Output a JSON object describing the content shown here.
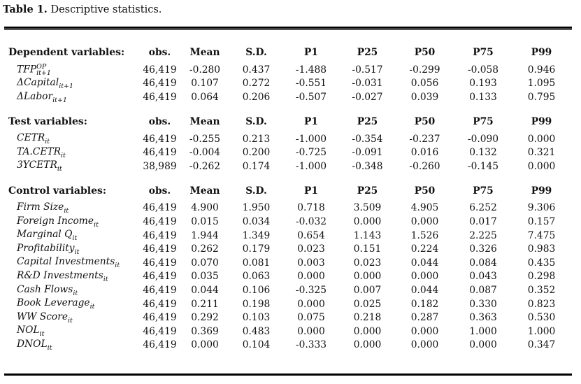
{
  "caption": {
    "label": "Table 1.",
    "text": "Descriptive statistics."
  },
  "columns": [
    "obs.",
    "Mean",
    "S.D.",
    "P1",
    "P25",
    "P50",
    "P75",
    "P99"
  ],
  "sections": [
    {
      "title": "Dependent variables:",
      "rows": [
        {
          "base": "TFP",
          "sub": "it+1",
          "sup": "OP",
          "values": [
            "46,419",
            "-0.280",
            "0.437",
            "-1.488",
            "-0.517",
            "-0.299",
            "-0.058",
            "0.946"
          ]
        },
        {
          "base": "ΔCapital",
          "sub": "it+1",
          "sup": "",
          "values": [
            "46,419",
            "0.107",
            "0.272",
            "-0.551",
            "-0.031",
            "0.056",
            "0.193",
            "1.095"
          ]
        },
        {
          "base": "ΔLabor",
          "sub": "it+1",
          "sup": "",
          "values": [
            "46,419",
            "0.064",
            "0.206",
            "-0.507",
            "-0.027",
            "0.039",
            "0.133",
            "0.795"
          ]
        }
      ]
    },
    {
      "title": "Test variables:",
      "rows": [
        {
          "base": "CETR",
          "sub": "it",
          "sup": "",
          "values": [
            "46,419",
            "-0.255",
            "0.213",
            "-1.000",
            "-0.354",
            "-0.237",
            "-0.090",
            "0.000"
          ]
        },
        {
          "base": "TA.CETR",
          "sub": "it",
          "sup": "",
          "values": [
            "46,419",
            "-0.004",
            "0.200",
            "-0.725",
            "-0.091",
            "0.016",
            "0.132",
            "0.321"
          ]
        },
        {
          "base": "3YCETR",
          "sub": "it",
          "sup": "",
          "values": [
            "38,989",
            "-0.262",
            "0.174",
            "-1.000",
            "-0.348",
            "-0.260",
            "-0.145",
            "0.000"
          ]
        }
      ]
    },
    {
      "title": "Control variables:",
      "rows": [
        {
          "base": "Firm Size",
          "sub": "it",
          "sup": "",
          "values": [
            "46,419",
            "4.900",
            "1.950",
            "0.718",
            "3.509",
            "4.905",
            "6.252",
            "9.306"
          ]
        },
        {
          "base": "Foreign Income",
          "sub": "it",
          "sup": "",
          "values": [
            "46,419",
            "0.015",
            "0.034",
            "-0.032",
            "0.000",
            "0.000",
            "0.017",
            "0.157"
          ]
        },
        {
          "base": "Marginal Q",
          "sub": "it",
          "sup": "",
          "values": [
            "46,419",
            "1.944",
            "1.349",
            "0.654",
            "1.143",
            "1.526",
            "2.225",
            "7.475"
          ]
        },
        {
          "base": "Profitability",
          "sub": "it",
          "sup": "",
          "values": [
            "46,419",
            "0.262",
            "0.179",
            "0.023",
            "0.151",
            "0.224",
            "0.326",
            "0.983"
          ]
        },
        {
          "base": "Capital Investments",
          "sub": "it",
          "sup": "",
          "values": [
            "46,419",
            "0.070",
            "0.081",
            "0.003",
            "0.023",
            "0.044",
            "0.084",
            "0.435"
          ]
        },
        {
          "base": "R&D Investments",
          "sub": "it",
          "sup": "",
          "values": [
            "46,419",
            "0.035",
            "0.063",
            "0.000",
            "0.000",
            "0.000",
            "0.043",
            "0.298"
          ]
        },
        {
          "base": "Cash Flows",
          "sub": "it",
          "sup": "",
          "values": [
            "46,419",
            "0.044",
            "0.106",
            "-0.325",
            "0.007",
            "0.044",
            "0.087",
            "0.352"
          ]
        },
        {
          "base": "Book Leverage",
          "sub": "it",
          "sup": "",
          "values": [
            "46,419",
            "0.211",
            "0.198",
            "0.000",
            "0.025",
            "0.182",
            "0.330",
            "0.823"
          ]
        },
        {
          "base": "WW Score",
          "sub": "it",
          "sup": "",
          "values": [
            "46,419",
            "0.292",
            "0.103",
            "0.075",
            "0.218",
            "0.287",
            "0.363",
            "0.530"
          ]
        },
        {
          "base": "NOL",
          "sub": "it",
          "sup": "",
          "values": [
            "46,419",
            "0.369",
            "0.483",
            "0.000",
            "0.000",
            "0.000",
            "1.000",
            "1.000"
          ]
        },
        {
          "base": "DNOL",
          "sub": "it",
          "sup": "",
          "values": [
            "46,419",
            "0.000",
            "0.104",
            "-0.333",
            "0.000",
            "0.000",
            "0.000",
            "0.347"
          ]
        }
      ]
    }
  ]
}
